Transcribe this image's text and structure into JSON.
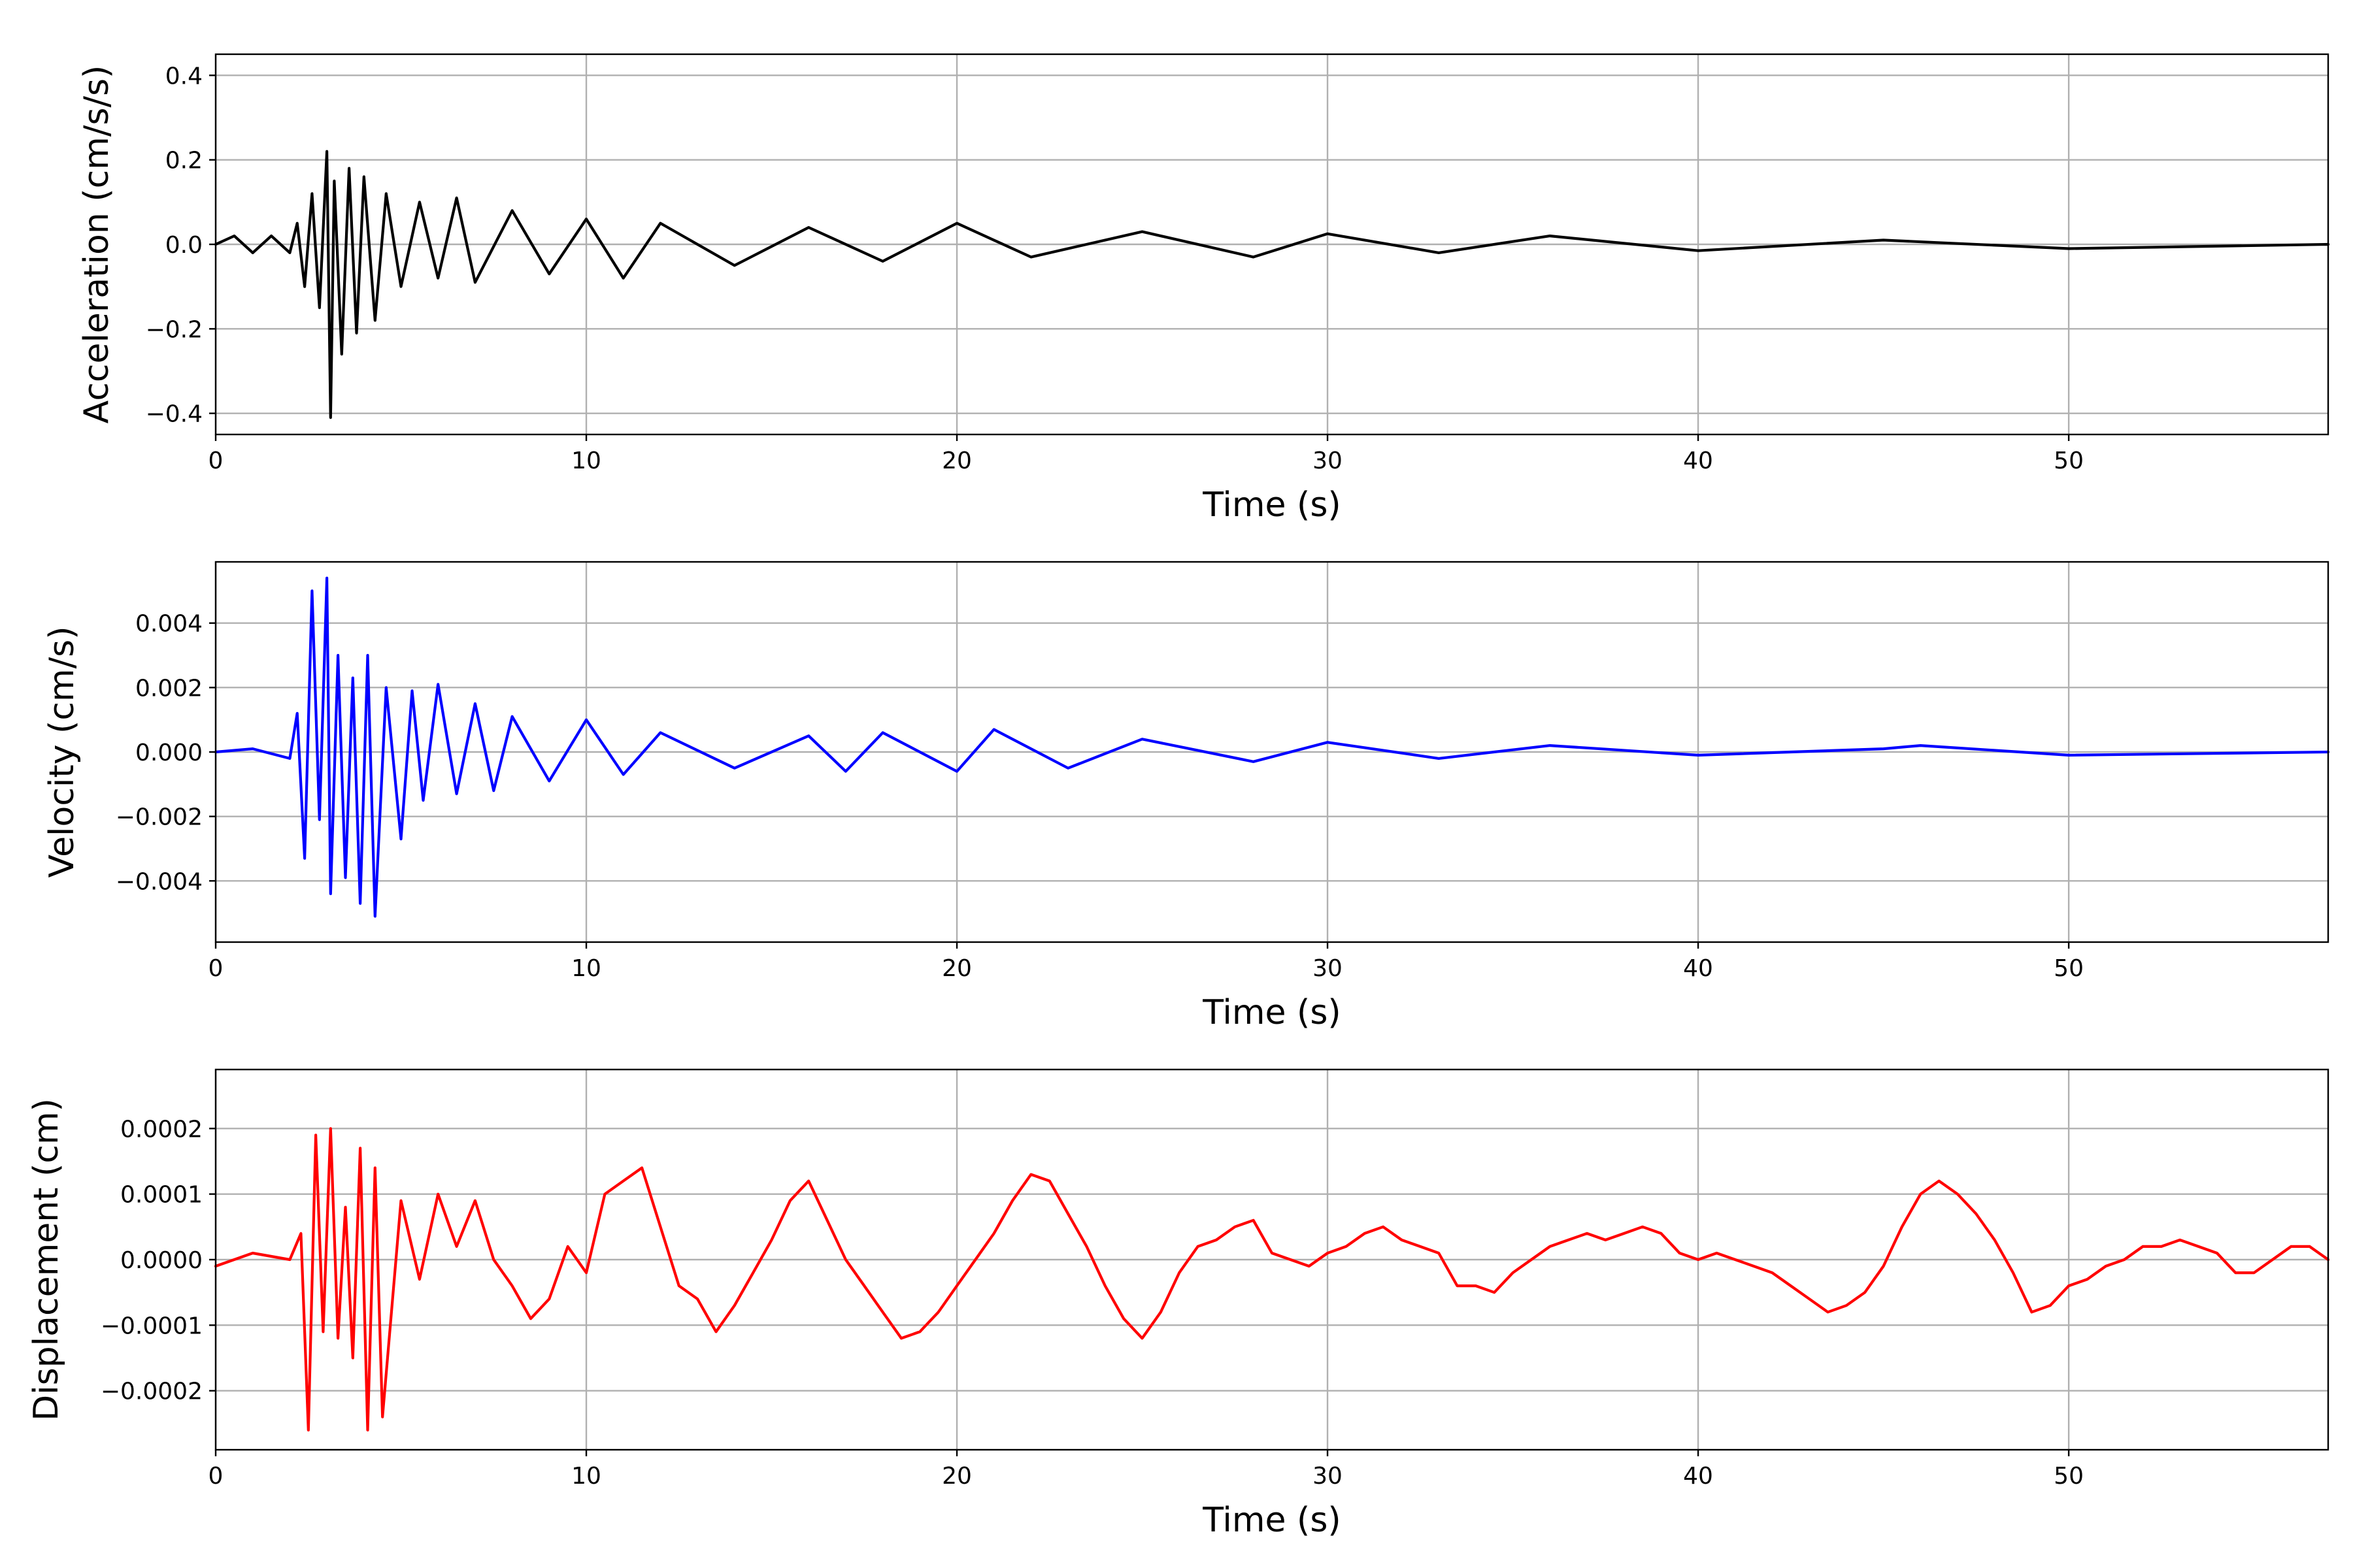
{
  "chart_data": [
    {
      "type": "line",
      "xlabel": "Time (s)",
      "ylabel": "Acceleration (cm/s/s)",
      "xlim": [
        0,
        57
      ],
      "ylim": [
        -0.45,
        0.45
      ],
      "xticks": [
        0,
        10,
        20,
        30,
        40,
        50
      ],
      "xtick_labels": [
        "0",
        "10",
        "20",
        "30",
        "40",
        "50"
      ],
      "yticks": [
        -0.4,
        -0.2,
        0.0,
        0.2,
        0.4
      ],
      "ytick_labels": [
        "−0.4",
        "−0.2",
        "0.0",
        "0.2",
        "0.4"
      ],
      "grid": true,
      "series": [
        {
          "color": "#000000",
          "x": [
            0,
            0.5,
            1,
            1.5,
            2,
            2.2,
            2.4,
            2.6,
            2.8,
            3.0,
            3.1,
            3.2,
            3.4,
            3.6,
            3.8,
            4.0,
            4.3,
            4.6,
            5.0,
            5.5,
            6.0,
            6.5,
            7.0,
            8.0,
            9.0,
            10.0,
            11.0,
            12.0,
            14.0,
            16.0,
            18.0,
            20.0,
            22.0,
            25.0,
            28.0,
            30.0,
            33.0,
            36.0,
            40.0,
            45.0,
            50.0,
            57.0
          ],
          "y": [
            0.0,
            0.02,
            -0.02,
            0.02,
            -0.02,
            0.05,
            -0.1,
            0.12,
            -0.15,
            0.22,
            -0.41,
            0.15,
            -0.26,
            0.18,
            -0.21,
            0.16,
            -0.18,
            0.12,
            -0.1,
            0.1,
            -0.08,
            0.11,
            -0.09,
            0.08,
            -0.07,
            0.06,
            -0.08,
            0.05,
            -0.05,
            0.04,
            -0.04,
            0.05,
            -0.03,
            0.03,
            -0.03,
            0.025,
            -0.02,
            0.02,
            -0.015,
            0.01,
            -0.01,
            0.0
          ]
        }
      ]
    },
    {
      "type": "line",
      "xlabel": "Time (s)",
      "ylabel": "Velocity (cm/s)",
      "xlim": [
        0,
        57
      ],
      "ylim": [
        -0.0059,
        0.0059
      ],
      "xticks": [
        0,
        10,
        20,
        30,
        40,
        50
      ],
      "xtick_labels": [
        "0",
        "10",
        "20",
        "30",
        "40",
        "50"
      ],
      "yticks": [
        -0.004,
        -0.002,
        0.0,
        0.002,
        0.004
      ],
      "ytick_labels": [
        "−0.004",
        "−0.002",
        "0.000",
        "0.002",
        "0.004"
      ],
      "grid": true,
      "series": [
        {
          "color": "#0000ff",
          "x": [
            0,
            1,
            2.0,
            2.2,
            2.4,
            2.6,
            2.8,
            3.0,
            3.1,
            3.3,
            3.5,
            3.7,
            3.9,
            4.1,
            4.3,
            4.6,
            5.0,
            5.3,
            5.6,
            6.0,
            6.5,
            7.0,
            7.5,
            8.0,
            9.0,
            10.0,
            11.0,
            12.0,
            14.0,
            16.0,
            17.0,
            18.0,
            20.0,
            21.0,
            23.0,
            25.0,
            28.0,
            30.0,
            33.0,
            36.0,
            40.0,
            45.0,
            46.0,
            50.0,
            57.0
          ],
          "y": [
            0.0,
            0.0001,
            -0.0002,
            0.0012,
            -0.0033,
            0.005,
            -0.0021,
            0.0054,
            -0.0044,
            0.003,
            -0.0039,
            0.0023,
            -0.0047,
            0.003,
            -0.0051,
            0.002,
            -0.0027,
            0.0019,
            -0.0015,
            0.0021,
            -0.0013,
            0.0015,
            -0.0012,
            0.0011,
            -0.0009,
            0.001,
            -0.0007,
            0.0006,
            -0.0005,
            0.0005,
            -0.0006,
            0.0006,
            -0.0006,
            0.0007,
            -0.0005,
            0.0004,
            -0.0003,
            0.0003,
            -0.0002,
            0.0002,
            -0.0001,
            0.0001,
            0.0002,
            -0.0001,
            0.0
          ]
        }
      ]
    },
    {
      "type": "line",
      "xlabel": "Time (s)",
      "ylabel": "Displacement (cm)",
      "xlim": [
        0,
        57
      ],
      "ylim": [
        -0.00029,
        0.00029
      ],
      "xticks": [
        0,
        10,
        20,
        30,
        40,
        50
      ],
      "xtick_labels": [
        "0",
        "10",
        "20",
        "30",
        "40",
        "50"
      ],
      "yticks": [
        -0.0002,
        -0.0001,
        0.0,
        0.0001,
        0.0002
      ],
      "ytick_labels": [
        "−0.0002",
        "−0.0001",
        "0.0000",
        "0.0001",
        "0.0002"
      ],
      "grid": true,
      "series": [
        {
          "color": "#ff0000",
          "x": [
            0,
            1,
            2.0,
            2.3,
            2.5,
            2.7,
            2.9,
            3.1,
            3.3,
            3.5,
            3.7,
            3.9,
            4.1,
            4.3,
            4.5,
            5.0,
            5.5,
            6.0,
            6.5,
            7.0,
            7.5,
            8.0,
            8.5,
            9.0,
            9.5,
            10.0,
            10.5,
            11.0,
            11.5,
            12.0,
            12.5,
            13.0,
            13.5,
            14.0,
            14.5,
            15.0,
            15.5,
            16.0,
            16.5,
            17.0,
            17.5,
            18.0,
            18.5,
            19.0,
            19.5,
            20.0,
            20.5,
            21.0,
            21.5,
            22.0,
            22.5,
            23.0,
            23.5,
            24.0,
            24.5,
            25.0,
            25.5,
            26.0,
            26.5,
            27.0,
            27.5,
            28.0,
            28.5,
            29.0,
            29.5,
            30.0,
            30.5,
            31.0,
            31.5,
            32.0,
            32.5,
            33.0,
            33.5,
            34.0,
            34.5,
            35.0,
            35.5,
            36.0,
            36.5,
            37.0,
            37.5,
            38.0,
            38.5,
            39.0,
            39.5,
            40.0,
            40.5,
            41.0,
            41.5,
            42.0,
            42.5,
            43.0,
            43.5,
            44.0,
            44.5,
            45.0,
            45.5,
            46.0,
            46.5,
            47.0,
            47.5,
            48.0,
            48.5,
            49.0,
            49.5,
            50.0,
            50.5,
            51.0,
            51.5,
            52.0,
            52.5,
            53.0,
            53.5,
            54.0,
            54.5,
            55.0,
            55.5,
            56.0,
            56.5,
            57.0
          ],
          "y": [
            -1e-05,
            1e-05,
            0.0,
            4e-05,
            -0.00026,
            0.00019,
            -0.00011,
            0.0002,
            -0.00012,
            8e-05,
            -0.00015,
            0.00017,
            -0.00026,
            0.00014,
            -0.00024,
            9e-05,
            -3e-05,
            0.0001,
            2e-05,
            9e-05,
            0.0,
            -4e-05,
            -9e-05,
            -6e-05,
            2e-05,
            -2e-05,
            0.0001,
            0.00012,
            0.00014,
            5e-05,
            -4e-05,
            -6e-05,
            -0.00011,
            -7e-05,
            -2e-05,
            3e-05,
            9e-05,
            0.00012,
            6e-05,
            0.0,
            -4e-05,
            -8e-05,
            -0.00012,
            -0.00011,
            -8e-05,
            -4e-05,
            0.0,
            4e-05,
            9e-05,
            0.00013,
            0.00012,
            7e-05,
            2e-05,
            -4e-05,
            -9e-05,
            -0.00012,
            -8e-05,
            -2e-05,
            2e-05,
            3e-05,
            5e-05,
            6e-05,
            1e-05,
            0.0,
            -1e-05,
            1e-05,
            2e-05,
            4e-05,
            5e-05,
            3e-05,
            2e-05,
            1e-05,
            -4e-05,
            -4e-05,
            -5e-05,
            -2e-05,
            0.0,
            2e-05,
            3e-05,
            4e-05,
            3e-05,
            4e-05,
            5e-05,
            4e-05,
            1e-05,
            0.0,
            1e-05,
            0.0,
            -1e-05,
            -2e-05,
            -4e-05,
            -6e-05,
            -8e-05,
            -7e-05,
            -5e-05,
            -1e-05,
            5e-05,
            0.0001,
            0.00012,
            0.0001,
            7e-05,
            3e-05,
            -2e-05,
            -8e-05,
            -7e-05,
            -4e-05,
            -3e-05,
            -1e-05,
            0.0,
            2e-05,
            2e-05,
            3e-05,
            2e-05,
            1e-05,
            -2e-05,
            -2e-05,
            0.0,
            2e-05,
            2e-05,
            0.0
          ]
        }
      ]
    }
  ]
}
